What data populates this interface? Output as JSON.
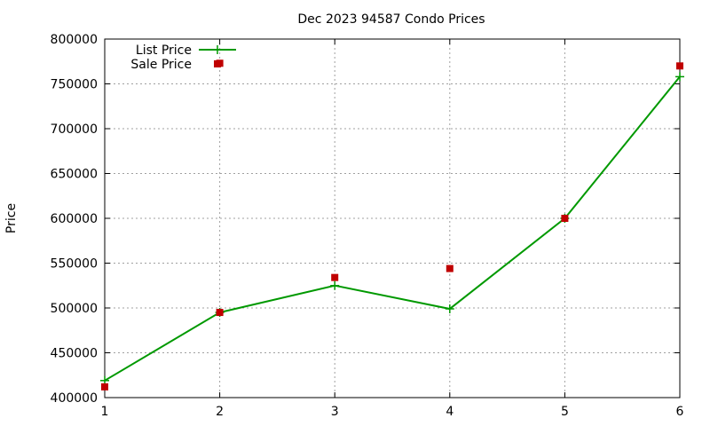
{
  "chart_data": {
    "type": "line",
    "title": "Dec 2023 94587 Condo Prices",
    "xlabel": "",
    "ylabel": "Price",
    "xlim": [
      1,
      6
    ],
    "ylim": [
      400000,
      800000
    ],
    "xticks": [
      1,
      2,
      3,
      4,
      5,
      6
    ],
    "yticks": [
      400000,
      450000,
      500000,
      550000,
      600000,
      650000,
      700000,
      750000,
      800000
    ],
    "grid": true,
    "legend_position": "top-left",
    "series": [
      {
        "name": "List Price",
        "style": "line-with-plus-markers",
        "color": "#009900",
        "x": [
          1,
          2,
          3,
          4,
          5,
          6
        ],
        "values": [
          419000,
          495000,
          525000,
          499000,
          600000,
          758000
        ]
      },
      {
        "name": "Sale Price",
        "style": "square-points",
        "color": "#c00000",
        "x": [
          1,
          2,
          2,
          3,
          4,
          5,
          6
        ],
        "values": [
          412000,
          495000,
          773000,
          534000,
          544000,
          600000,
          770000
        ]
      }
    ]
  }
}
